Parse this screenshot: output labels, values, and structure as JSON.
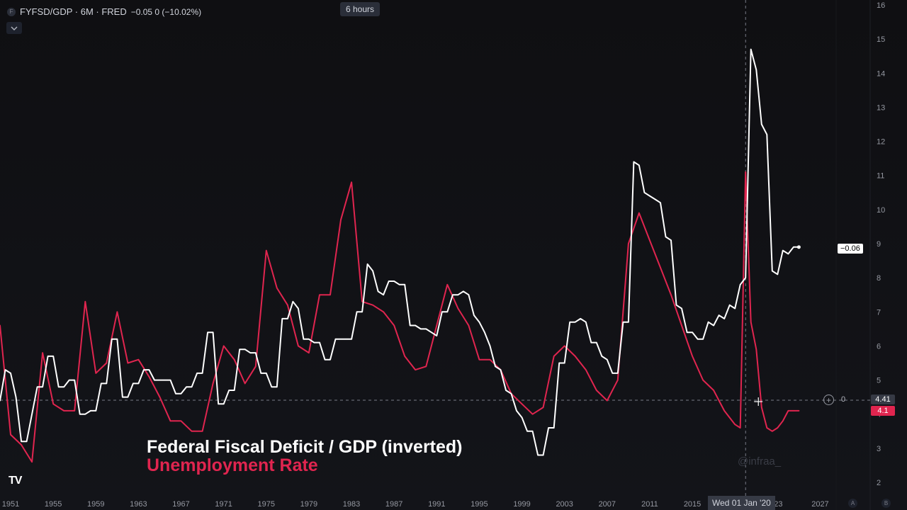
{
  "header": {
    "symbol_badge": "F",
    "title": "FYFSD/GDP · 6M · FRED",
    "change": "−0.05  0 (−10.02%)",
    "collapse_icon": "chevron-down-icon"
  },
  "interval_tooltip": "6 hours",
  "caption": {
    "line1": "Federal Fiscal Deficit / GDP (inverted)",
    "line2": "Unemployment Rate"
  },
  "watermark": "@infraa_",
  "logo": "TV",
  "crosshair": {
    "date_label": "Wed 01 Jan '20",
    "zero_label": "0",
    "plus_icon": "plus-circle-icon"
  },
  "price_labels": {
    "deficit_last": "−0.06",
    "crosshair_price": "4.41",
    "unemployment_last": "4.1"
  },
  "corner_buttons": [
    "A",
    "B"
  ],
  "colors": {
    "background": "#0f0f12",
    "deficit": "#ffffff",
    "unemployment": "#e0254f",
    "grid_text": "#9598a1"
  },
  "chart_data": {
    "type": "line",
    "x_ticks": [
      "1951",
      "1955",
      "1959",
      "1963",
      "1967",
      "1971",
      "1975",
      "1979",
      "1983",
      "1987",
      "1991",
      "1995",
      "1999",
      "2003",
      "2007",
      "2011",
      "2015",
      "'23",
      "2027"
    ],
    "xlim": [
      1950,
      2028.5
    ],
    "y_ticks": [
      2,
      3,
      4,
      5,
      6,
      7,
      8,
      9,
      10,
      11,
      12,
      13,
      14,
      15,
      16
    ],
    "ylim": [
      1.6,
      16.1
    ],
    "series": [
      {
        "name": "Federal Fiscal Deficit / GDP (inverted)",
        "color": "#ffffff",
        "points": [
          [
            1950,
            4.4
          ],
          [
            1950.5,
            5.3
          ],
          [
            1951,
            5.2
          ],
          [
            1951.5,
            4.5
          ],
          [
            1952,
            3.2
          ],
          [
            1952.5,
            3.2
          ],
          [
            1953,
            4.0
          ],
          [
            1953.5,
            4.8
          ],
          [
            1954,
            4.8
          ],
          [
            1954.5,
            5.7
          ],
          [
            1955,
            5.7
          ],
          [
            1955.5,
            4.8
          ],
          [
            1956,
            4.8
          ],
          [
            1956.5,
            5.0
          ],
          [
            1957,
            5.0
          ],
          [
            1957.5,
            4.0
          ],
          [
            1958,
            4.0
          ],
          [
            1958.5,
            4.1
          ],
          [
            1959,
            4.1
          ],
          [
            1959.5,
            4.9
          ],
          [
            1960,
            4.9
          ],
          [
            1960.5,
            6.2
          ],
          [
            1961,
            6.2
          ],
          [
            1961.5,
            4.5
          ],
          [
            1962,
            4.5
          ],
          [
            1962.5,
            4.9
          ],
          [
            1963,
            4.9
          ],
          [
            1963.5,
            5.3
          ],
          [
            1964,
            5.3
          ],
          [
            1964.5,
            5.0
          ],
          [
            1965,
            5.0
          ],
          [
            1965.5,
            5.0
          ],
          [
            1966,
            5.0
          ],
          [
            1966.5,
            4.6
          ],
          [
            1967,
            4.6
          ],
          [
            1967.5,
            4.8
          ],
          [
            1968,
            4.8
          ],
          [
            1968.5,
            5.2
          ],
          [
            1969,
            5.2
          ],
          [
            1969.5,
            6.4
          ],
          [
            1970,
            6.4
          ],
          [
            1970.5,
            4.3
          ],
          [
            1971,
            4.3
          ],
          [
            1971.5,
            4.7
          ],
          [
            1972,
            4.7
          ],
          [
            1972.5,
            5.9
          ],
          [
            1973,
            5.9
          ],
          [
            1973.5,
            5.8
          ],
          [
            1974,
            5.8
          ],
          [
            1974.5,
            5.2
          ],
          [
            1975,
            5.2
          ],
          [
            1975.5,
            4.8
          ],
          [
            1976,
            4.8
          ],
          [
            1976.5,
            6.8
          ],
          [
            1977,
            6.8
          ],
          [
            1977.5,
            7.3
          ],
          [
            1978,
            7.1
          ],
          [
            1978.5,
            6.2
          ],
          [
            1979,
            6.2
          ],
          [
            1979.5,
            6.1
          ],
          [
            1980,
            6.1
          ],
          [
            1980.5,
            5.6
          ],
          [
            1981,
            5.6
          ],
          [
            1981.5,
            6.2
          ],
          [
            1982,
            6.2
          ],
          [
            1982.5,
            6.2
          ],
          [
            1983,
            6.2
          ],
          [
            1983.5,
            7.0
          ],
          [
            1984,
            7.0
          ],
          [
            1984.5,
            8.4
          ],
          [
            1985,
            8.2
          ],
          [
            1985.5,
            7.6
          ],
          [
            1986,
            7.5
          ],
          [
            1986.5,
            7.9
          ],
          [
            1987,
            7.9
          ],
          [
            1987.5,
            7.8
          ],
          [
            1988,
            7.8
          ],
          [
            1988.5,
            6.6
          ],
          [
            1989,
            6.6
          ],
          [
            1989.5,
            6.5
          ],
          [
            1990,
            6.5
          ],
          [
            1990.5,
            6.4
          ],
          [
            1991,
            6.3
          ],
          [
            1991.5,
            7.0
          ],
          [
            1992,
            7.0
          ],
          [
            1992.5,
            7.5
          ],
          [
            1993,
            7.5
          ],
          [
            1993.5,
            7.6
          ],
          [
            1994,
            7.5
          ],
          [
            1994.5,
            6.9
          ],
          [
            1995,
            6.7
          ],
          [
            1995.5,
            6.4
          ],
          [
            1996,
            6.0
          ],
          [
            1996.5,
            5.4
          ],
          [
            1997,
            5.3
          ],
          [
            1997.5,
            4.7
          ],
          [
            1998,
            4.6
          ],
          [
            1998.5,
            4.1
          ],
          [
            1999,
            3.9
          ],
          [
            1999.5,
            3.5
          ],
          [
            2000,
            3.5
          ],
          [
            2000.5,
            2.8
          ],
          [
            2001,
            2.8
          ],
          [
            2001.5,
            3.6
          ],
          [
            2002,
            3.6
          ],
          [
            2002.5,
            5.5
          ],
          [
            2003,
            5.5
          ],
          [
            2003.5,
            6.7
          ],
          [
            2004,
            6.7
          ],
          [
            2004.5,
            6.8
          ],
          [
            2005,
            6.7
          ],
          [
            2005.5,
            6.1
          ],
          [
            2006,
            6.1
          ],
          [
            2006.5,
            5.7
          ],
          [
            2007,
            5.6
          ],
          [
            2007.5,
            5.2
          ],
          [
            2008,
            5.2
          ],
          [
            2008.5,
            6.7
          ],
          [
            2009,
            6.7
          ],
          [
            2009.5,
            11.4
          ],
          [
            2010,
            11.3
          ],
          [
            2010.5,
            10.5
          ],
          [
            2011,
            10.4
          ],
          [
            2011.5,
            10.3
          ],
          [
            2012,
            10.2
          ],
          [
            2012.5,
            9.2
          ],
          [
            2013,
            9.1
          ],
          [
            2013.5,
            7.2
          ],
          [
            2014,
            7.1
          ],
          [
            2014.5,
            6.4
          ],
          [
            2015,
            6.4
          ],
          [
            2015.5,
            6.2
          ],
          [
            2016,
            6.2
          ],
          [
            2016.5,
            6.7
          ],
          [
            2017,
            6.6
          ],
          [
            2017.5,
            6.9
          ],
          [
            2018,
            6.8
          ],
          [
            2018.5,
            7.2
          ],
          [
            2019,
            7.1
          ],
          [
            2019.5,
            7.8
          ],
          [
            2020,
            8.0
          ],
          [
            2020.5,
            14.7
          ],
          [
            2021,
            14.1
          ],
          [
            2021.5,
            12.5
          ],
          [
            2022,
            12.2
          ],
          [
            2022.5,
            8.2
          ],
          [
            2023,
            8.1
          ],
          [
            2023.5,
            8.8
          ],
          [
            2024,
            8.7
          ],
          [
            2024.5,
            8.9
          ],
          [
            2025,
            8.9
          ]
        ]
      },
      {
        "name": "Unemployment Rate",
        "color": "#e0254f",
        "points": [
          [
            1950,
            6.6
          ],
          [
            1951,
            3.4
          ],
          [
            1952,
            3.1
          ],
          [
            1953,
            2.6
          ],
          [
            1954,
            5.8
          ],
          [
            1955,
            4.3
          ],
          [
            1956,
            4.1
          ],
          [
            1957,
            4.1
          ],
          [
            1958,
            7.3
          ],
          [
            1959,
            5.2
          ],
          [
            1960,
            5.5
          ],
          [
            1961,
            7.0
          ],
          [
            1962,
            5.5
          ],
          [
            1963,
            5.6
          ],
          [
            1964,
            5.1
          ],
          [
            1965,
            4.5
          ],
          [
            1966,
            3.8
          ],
          [
            1967,
            3.8
          ],
          [
            1968,
            3.5
          ],
          [
            1969,
            3.5
          ],
          [
            1970,
            4.9
          ],
          [
            1971,
            6.0
          ],
          [
            1972,
            5.6
          ],
          [
            1973,
            4.9
          ],
          [
            1974,
            5.4
          ],
          [
            1975,
            8.8
          ],
          [
            1976,
            7.7
          ],
          [
            1977,
            7.2
          ],
          [
            1978,
            6.0
          ],
          [
            1979,
            5.8
          ],
          [
            1980,
            7.5
          ],
          [
            1981,
            7.5
          ],
          [
            1982,
            9.7
          ],
          [
            1983,
            10.8
          ],
          [
            1984,
            7.3
          ],
          [
            1985,
            7.2
          ],
          [
            1986,
            7.0
          ],
          [
            1987,
            6.6
          ],
          [
            1988,
            5.7
          ],
          [
            1989,
            5.3
          ],
          [
            1990,
            5.4
          ],
          [
            1991,
            6.6
          ],
          [
            1992,
            7.8
          ],
          [
            1993,
            7.1
          ],
          [
            1994,
            6.6
          ],
          [
            1995,
            5.6
          ],
          [
            1996,
            5.6
          ],
          [
            1997,
            5.3
          ],
          [
            1998,
            4.6
          ],
          [
            1999,
            4.3
          ],
          [
            2000,
            4.0
          ],
          [
            2001,
            4.2
          ],
          [
            2002,
            5.7
          ],
          [
            2003,
            6.0
          ],
          [
            2004,
            5.7
          ],
          [
            2005,
            5.3
          ],
          [
            2006,
            4.7
          ],
          [
            2007,
            4.4
          ],
          [
            2008,
            5.0
          ],
          [
            2009,
            9.0
          ],
          [
            2010,
            9.9
          ],
          [
            2011,
            9.1
          ],
          [
            2012,
            8.3
          ],
          [
            2013,
            7.5
          ],
          [
            2014,
            6.6
          ],
          [
            2015,
            5.7
          ],
          [
            2016,
            5.0
          ],
          [
            2017,
            4.7
          ],
          [
            2018,
            4.1
          ],
          [
            2019,
            3.7
          ],
          [
            2019.5,
            3.6
          ],
          [
            2020,
            11.1
          ],
          [
            2020.5,
            6.7
          ],
          [
            2021,
            5.9
          ],
          [
            2021.5,
            4.2
          ],
          [
            2022,
            3.6
          ],
          [
            2022.5,
            3.5
          ],
          [
            2023,
            3.6
          ],
          [
            2023.5,
            3.8
          ],
          [
            2024,
            4.1
          ],
          [
            2025,
            4.1
          ]
        ]
      }
    ]
  }
}
